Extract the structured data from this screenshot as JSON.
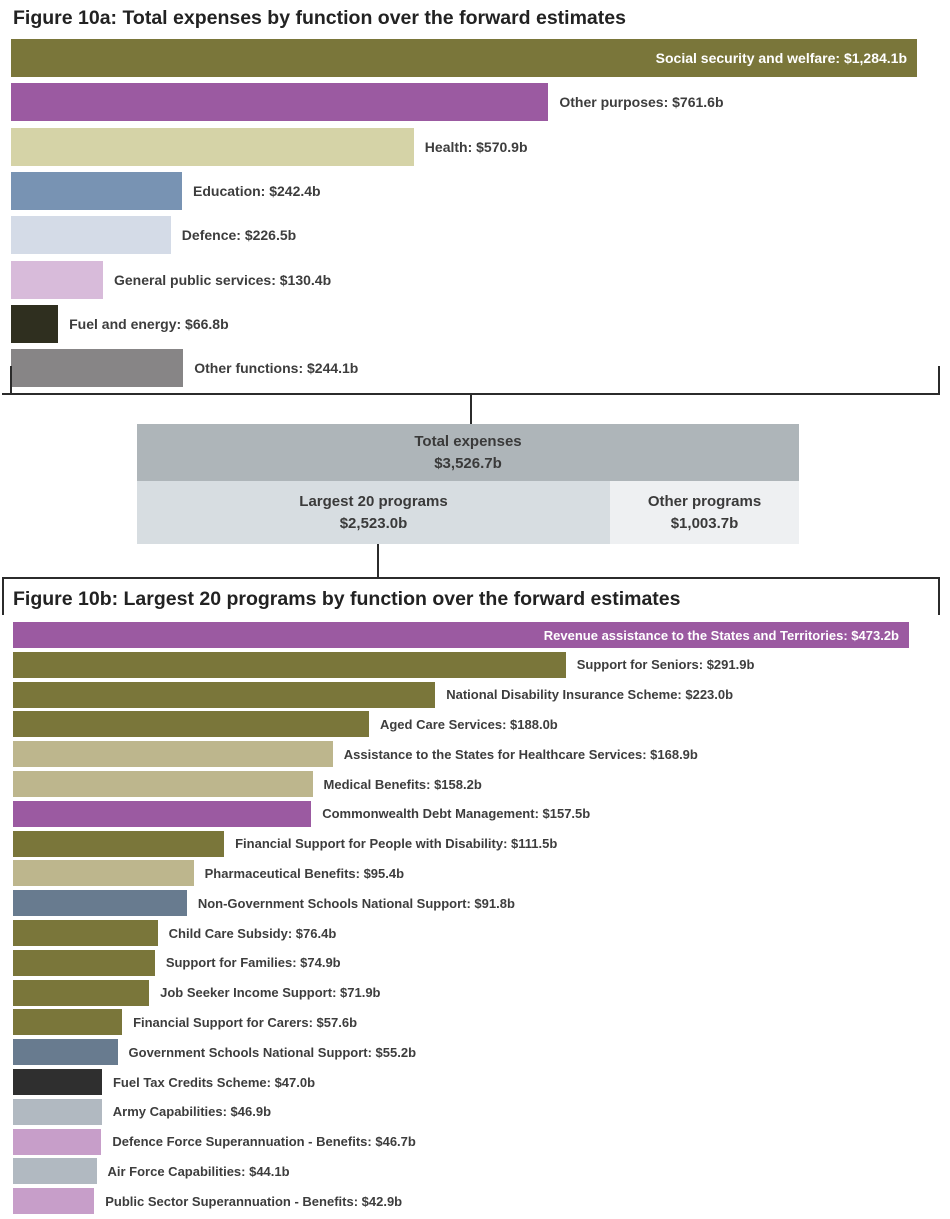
{
  "figure_a": {
    "title": "Figure 10a: Total expenses by function over the forward estimates"
  },
  "summary": {
    "total_label": "Total expenses",
    "total_value": "$3,526.7b",
    "largest_label": "Largest 20 programs",
    "largest_value": "$2,523.0b",
    "other_label": "Other programs",
    "other_value": "$1,003.7b",
    "colors": {
      "total": "#aeb5b9",
      "largest": "#d7dde1",
      "other": "#eef0f2"
    }
  },
  "figure_b": {
    "title": "Figure 10b: Largest 20 programs by function over the forward estimates"
  },
  "chart_data": [
    {
      "type": "bar",
      "orientation": "horizontal",
      "title": "Figure 10a: Total expenses by function over the forward estimates",
      "unit": "$b",
      "categories": [
        "Social security and welfare",
        "Other purposes",
        "Health",
        "Education",
        "Defence",
        "General public services",
        "Fuel and energy",
        "Other functions"
      ],
      "values": [
        1284.1,
        761.6,
        570.9,
        242.4,
        226.5,
        130.4,
        66.8,
        244.1
      ],
      "labels": [
        "Social security and welfare: $1,284.1b",
        "Other purposes: $761.6b",
        "Health: $570.9b",
        "Education: $242.4b",
        "Defence: $226.5b",
        "General public services: $130.4b",
        "Fuel and energy: $66.8b",
        "Other functions: $244.1b"
      ],
      "colors": [
        "#7a763a",
        "#9b5aa1",
        "#d5d3a7",
        "#7893b3",
        "#d4dbe7",
        "#d8bbda",
        "#2f2f1f",
        "#878586"
      ],
      "xlim": [
        0,
        1284.1
      ],
      "grid": false,
      "legend": "none"
    },
    {
      "type": "bar",
      "orientation": "horizontal",
      "title": "Figure 10b: Largest 20 programs by function over the forward estimates",
      "unit": "$b",
      "categories": [
        "Revenue assistance to the States and Territories",
        "Support for Seniors",
        "National Disability Insurance Scheme",
        "Aged Care Services",
        "Assistance to the States for Healthcare Services",
        "Medical Benefits",
        "Commonwealth Debt Management",
        "Financial Support for People with Disability",
        "Pharmaceutical Benefits",
        "Non-Government Schools National Support",
        "Child Care Subsidy",
        "Support for Families",
        "Job Seeker Income Support",
        "Financial Support for Carers",
        "Government Schools National Support",
        "Fuel Tax Credits Scheme",
        "Army Capabilities",
        "Defence Force Superannuation - Benefits",
        "Air Force Capabilities",
        "Public Sector Superannuation - Benefits"
      ],
      "values": [
        473.2,
        291.9,
        223.0,
        188.0,
        168.9,
        158.2,
        157.5,
        111.5,
        95.4,
        91.8,
        76.4,
        74.9,
        71.9,
        57.6,
        55.2,
        47.0,
        46.9,
        46.7,
        44.1,
        42.9
      ],
      "labels": [
        "Revenue assistance to the States and Territories: $473.2b",
        "Support for Seniors: $291.9b",
        "National Disability Insurance Scheme: $223.0b",
        "Aged Care Services: $188.0b",
        "Assistance to the States for Healthcare Services: $168.9b",
        "Medical Benefits: $158.2b",
        "Commonwealth Debt Management: $157.5b",
        "Financial Support for People with Disability: $111.5b",
        "Pharmaceutical Benefits: $95.4b",
        "Non-Government Schools National Support: $91.8b",
        "Child Care Subsidy: $76.4b",
        "Support for Families: $74.9b",
        "Job Seeker Income Support: $71.9b",
        "Financial Support for Carers: $57.6b",
        "Government Schools National Support: $55.2b",
        "Fuel Tax Credits Scheme: $47.0b",
        "Army Capabilities: $46.9b",
        "Defence Force Superannuation - Benefits: $46.7b",
        "Air Force Capabilities: $44.1b",
        "Public Sector Superannuation - Benefits: $42.9b"
      ],
      "colors": [
        "#9b5aa1",
        "#7a763a",
        "#7a763a",
        "#7a763a",
        "#bdb68d",
        "#bdb68d",
        "#9b5aa1",
        "#7a763a",
        "#bdb68d",
        "#687b8f",
        "#7a763a",
        "#7a763a",
        "#7a763a",
        "#7a763a",
        "#687b8f",
        "#2f2f2f",
        "#b1b9c1",
        "#c79ec9",
        "#b1b9c1",
        "#c79ec9"
      ],
      "xlim": [
        0,
        473.2
      ],
      "grid": false,
      "legend": "none"
    }
  ]
}
